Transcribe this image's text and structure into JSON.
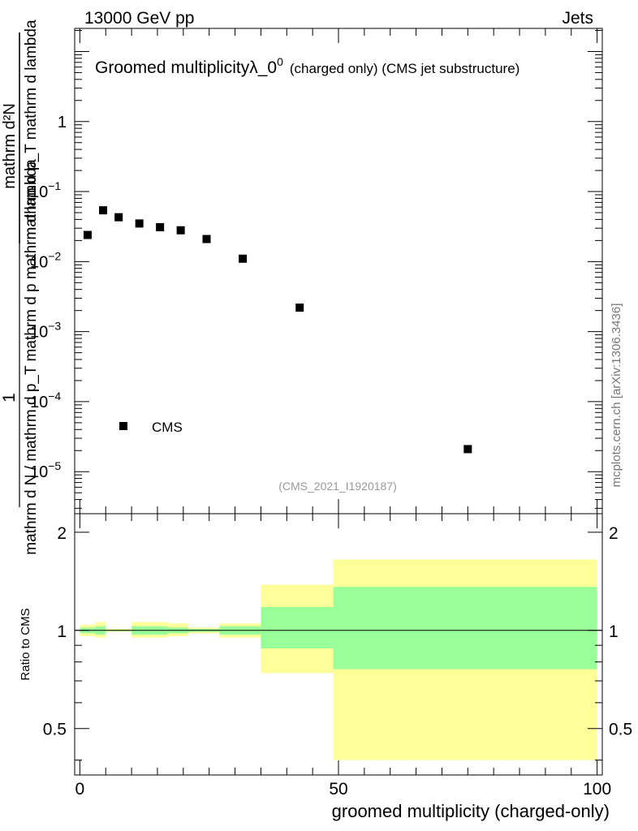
{
  "header": {
    "left": "13000 GeV pp",
    "right": "Jets"
  },
  "side_label": "mcplots.cern.ch [arXiv:1306.3436]",
  "chart_data": [
    {
      "type": "scatter",
      "title_main": "Groomed multiplicityλ_0",
      "title_sup": "0",
      "title_sub": "(charged only) (CMS jet substructure)",
      "ylabel": "1 / (mathrm d N / mathrm d p_T mathrm d p mathrm d lambda) · mathrm d²N / (mathrm d p_T mathrm d lambda)",
      "ylabel_numerator_top": "mathrm d²N",
      "ylabel_numerator_bottom": "mathrm d p_T mathrm d lambda",
      "ylabel_one": "1",
      "ylabel_denominator": "mathrm d N / mathrm d p_T mathrm d p mathrm d lambda",
      "yscale": "log",
      "xlim": [
        -1,
        101
      ],
      "ylim_exp": [
        -5.6,
        1.33
      ],
      "ytick_labels": [
        {
          "exp": 0,
          "label": "1",
          "sup": ""
        },
        {
          "exp": -1,
          "label": "10",
          "sup": "−1"
        },
        {
          "exp": -2,
          "label": "10",
          "sup": "−2"
        },
        {
          "exp": -3,
          "label": "10",
          "sup": "−3"
        },
        {
          "exp": -4,
          "label": "10",
          "sup": "−4"
        },
        {
          "exp": -5,
          "label": "10",
          "sup": "−5"
        }
      ],
      "series": [
        {
          "name": "CMS",
          "x": [
            1.5,
            4.5,
            7.5,
            11.5,
            15.5,
            19.5,
            24.5,
            31.5,
            42.5,
            75
          ],
          "y": [
            0.024,
            0.054,
            0.043,
            0.035,
            0.031,
            0.028,
            0.021,
            0.011,
            0.0022,
            2.1e-05
          ]
        }
      ],
      "legend": {
        "placement": "bottom-left",
        "label": "CMS"
      },
      "analysis_tag": "(CMS_2021_I1920187)"
    },
    {
      "type": "area",
      "ylabel": "Ratio to CMS",
      "xlabel": "groomed multiplicity (charged-only)",
      "xlim": [
        -1,
        101
      ],
      "ylim": [
        0.36,
        2.28
      ],
      "ytick_labels": [
        "0.5",
        "1",
        "2"
      ],
      "ytick_values": [
        0.5,
        1,
        2
      ],
      "xtick_labels": [
        "0",
        "50",
        "100"
      ],
      "xtick_values": [
        0,
        50,
        100
      ],
      "reference_line": 1,
      "bands": {
        "x_edges": [
          0,
          3,
          5,
          6,
          10,
          14,
          17,
          18,
          21,
          22,
          27,
          28,
          35,
          49,
          100
        ],
        "outer_low": [
          0.96,
          0.95,
          0.99,
          0.99,
          0.95,
          0.95,
          0.96,
          0.96,
          0.98,
          0.98,
          0.95,
          0.95,
          0.74,
          0.4
        ],
        "outer_high": [
          1.04,
          1.06,
          1.01,
          1.01,
          1.06,
          1.06,
          1.05,
          1.05,
          1.02,
          1.02,
          1.05,
          1.05,
          1.38,
          1.65
        ],
        "inner_low": [
          0.98,
          0.97,
          0.995,
          0.995,
          0.97,
          0.97,
          0.98,
          0.98,
          0.99,
          0.99,
          0.97,
          0.97,
          0.88,
          0.76
        ],
        "inner_high": [
          1.02,
          1.03,
          1.005,
          1.005,
          1.03,
          1.03,
          1.02,
          1.02,
          1.01,
          1.01,
          1.03,
          1.03,
          1.18,
          1.36
        ],
        "outer_color": "#ffff99",
        "inner_color": "#99ff99"
      }
    }
  ]
}
